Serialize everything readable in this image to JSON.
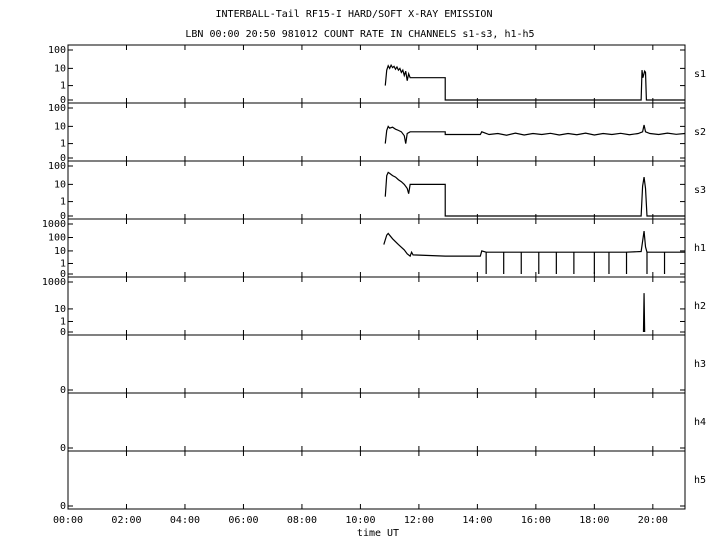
{
  "chart_data": {
    "type": "line",
    "title": "INTERBALL-Tail RF15-I HARD/SOFT X-RAY EMISSION",
    "subtitle": "LBN 00:00 20:50 981012  COUNT RATE IN CHANNELS s1-s3, h1-h5",
    "x_label": "time UT",
    "xlim": [
      0,
      21.1
    ],
    "xticks": [
      {
        "value": 0,
        "label": "00:00"
      },
      {
        "value": 2,
        "label": "02:00"
      },
      {
        "value": 4,
        "label": "04:00"
      },
      {
        "value": 6,
        "label": "06:00"
      },
      {
        "value": 8,
        "label": "08:00"
      },
      {
        "value": 10,
        "label": "10:00"
      },
      {
        "value": 12,
        "label": "12:00"
      },
      {
        "value": 14,
        "label": "14:00"
      },
      {
        "value": 16,
        "label": "16:00"
      },
      {
        "value": 18,
        "label": "18:00"
      },
      {
        "value": 20,
        "label": "20:00"
      }
    ],
    "yscale": "log",
    "color": "#000000",
    "panels": [
      {
        "name": "s1",
        "ylim": [
          0,
          100
        ],
        "yticks": [
          0,
          1,
          10,
          100
        ],
        "x": [
          10.85,
          10.9,
          10.95,
          11.0,
          11.05,
          11.1,
          11.15,
          11.2,
          11.25,
          11.3,
          11.35,
          11.4,
          11.45,
          11.5,
          11.55,
          11.6,
          11.65,
          11.7,
          12.9,
          12.9,
          19.6,
          19.63,
          19.66,
          19.72,
          19.75,
          19.78,
          21.1
        ],
        "values": [
          1,
          8,
          14,
          10,
          15,
          11,
          13,
          9,
          12,
          8,
          10,
          6,
          8,
          4,
          7,
          2,
          5,
          3,
          3,
          0,
          0,
          8,
          3,
          7,
          6,
          0,
          0
        ]
      },
      {
        "name": "s2",
        "ylim": [
          0,
          100
        ],
        "yticks": [
          0,
          1,
          10,
          100
        ],
        "x": [
          10.85,
          10.9,
          10.95,
          11.0,
          11.1,
          11.2,
          11.3,
          11.4,
          11.5,
          11.55,
          11.6,
          11.7,
          12.9,
          12.9,
          14.1,
          14.15,
          14.4,
          14.7,
          15.0,
          15.3,
          15.6,
          15.9,
          16.2,
          16.5,
          16.8,
          17.1,
          17.4,
          17.7,
          18.0,
          18.3,
          18.6,
          18.9,
          19.2,
          19.5,
          19.65,
          19.7,
          19.75,
          19.9,
          20.2,
          20.5,
          20.8,
          21.1
        ],
        "values": [
          1,
          6,
          10,
          8,
          9,
          7,
          6,
          5,
          3,
          1,
          4,
          5,
          5,
          3.5,
          3.5,
          5,
          3.5,
          4,
          3.2,
          4.2,
          3.3,
          4,
          3.5,
          4.1,
          3.3,
          4,
          3.4,
          4.2,
          3.3,
          4,
          3.5,
          4.1,
          3.4,
          4,
          5,
          12,
          5,
          4,
          3.5,
          4.2,
          3.6,
          4
        ]
      },
      {
        "name": "s3",
        "ylim": [
          0,
          100
        ],
        "yticks": [
          0,
          1,
          10,
          100
        ],
        "x": [
          10.85,
          10.9,
          10.95,
          11.0,
          11.1,
          11.2,
          11.3,
          11.4,
          11.5,
          11.6,
          11.65,
          11.7,
          12.9,
          12.9,
          19.6,
          19.65,
          19.7,
          19.75,
          19.8,
          21.1
        ],
        "values": [
          2,
          30,
          45,
          40,
          30,
          25,
          18,
          14,
          10,
          6,
          3,
          10,
          10,
          0,
          0,
          8,
          25,
          6,
          0,
          0
        ]
      },
      {
        "name": "h1",
        "ylim": [
          0,
          1000
        ],
        "yticks": [
          0,
          1,
          10,
          100,
          1000
        ],
        "x": [
          10.8,
          10.9,
          10.95,
          11.1,
          11.3,
          11.5,
          11.6,
          11.7,
          11.75,
          11.8,
          12.9,
          14.1,
          14.15,
          14.3,
          14.3,
          14.3,
          14.9,
          14.9,
          14.9,
          15.5,
          15.5,
          15.5,
          16.1,
          16.1,
          16.1,
          16.7,
          16.7,
          16.7,
          17.3,
          17.3,
          17.3,
          18.0,
          18.0,
          18.0,
          18.5,
          18.5,
          18.5,
          19.1,
          19.1,
          19.1,
          19.6,
          19.7,
          19.75,
          19.8,
          19.8,
          19.8,
          20.4,
          20.4,
          20.4,
          21.1
        ],
        "values": [
          30,
          150,
          200,
          80,
          30,
          12,
          6,
          4,
          8,
          5,
          4,
          4,
          10,
          8,
          0,
          8,
          8,
          0,
          8,
          8,
          0,
          8,
          8,
          0,
          8,
          8,
          0,
          8,
          8,
          0,
          8,
          8,
          0,
          8,
          8,
          0,
          8,
          8,
          0,
          8,
          9,
          300,
          20,
          8,
          0,
          8,
          8,
          0,
          8,
          8
        ]
      },
      {
        "name": "h2",
        "ylim": [
          0,
          1000
        ],
        "yticks": [
          0,
          1,
          10,
          1000
        ],
        "x": [
          19.68,
          19.7,
          19.72
        ],
        "values": [
          0,
          150,
          0
        ]
      },
      {
        "name": "h3",
        "ylim": [
          0,
          100
        ],
        "yticks": [
          0
        ],
        "x": [],
        "values": []
      },
      {
        "name": "h4",
        "ylim": [
          0,
          100
        ],
        "yticks": [
          0
        ],
        "x": [],
        "values": []
      },
      {
        "name": "h5",
        "ylim": [
          0,
          100
        ],
        "yticks": [
          0
        ],
        "x": [],
        "values": []
      }
    ]
  }
}
